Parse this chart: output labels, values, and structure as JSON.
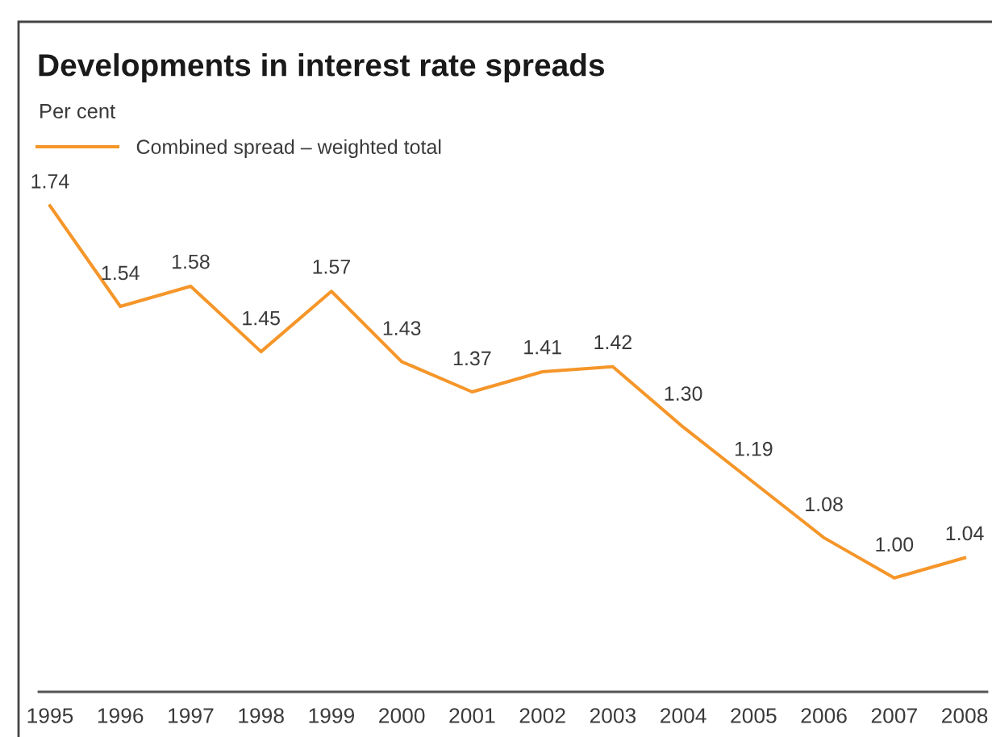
{
  "chart_data": {
    "type": "line",
    "title": "Developments in interest rate spreads",
    "subtitle": "Per cent",
    "categories": [
      "1995",
      "1996",
      "1997",
      "1998",
      "1999",
      "2000",
      "2001",
      "2002",
      "2003",
      "2004",
      "2005",
      "2006",
      "2007",
      "2008"
    ],
    "series": [
      {
        "name": "Combined spread – weighted total",
        "color": "#f5962a",
        "values": [
          1.74,
          1.54,
          1.58,
          1.45,
          1.57,
          1.43,
          1.37,
          1.41,
          1.42,
          1.3,
          1.19,
          1.08,
          1.0,
          1.04
        ],
        "value_labels": [
          "1.74",
          "1.54",
          "1.58",
          "1.45",
          "1.57",
          "1.43",
          "1.37",
          "1.41",
          "1.42",
          "1.30",
          "1.19",
          "1.08",
          "1.00",
          "1.04"
        ]
      }
    ],
    "legend": "top left",
    "grid": false,
    "marker": "none",
    "line_style": "solid"
  }
}
